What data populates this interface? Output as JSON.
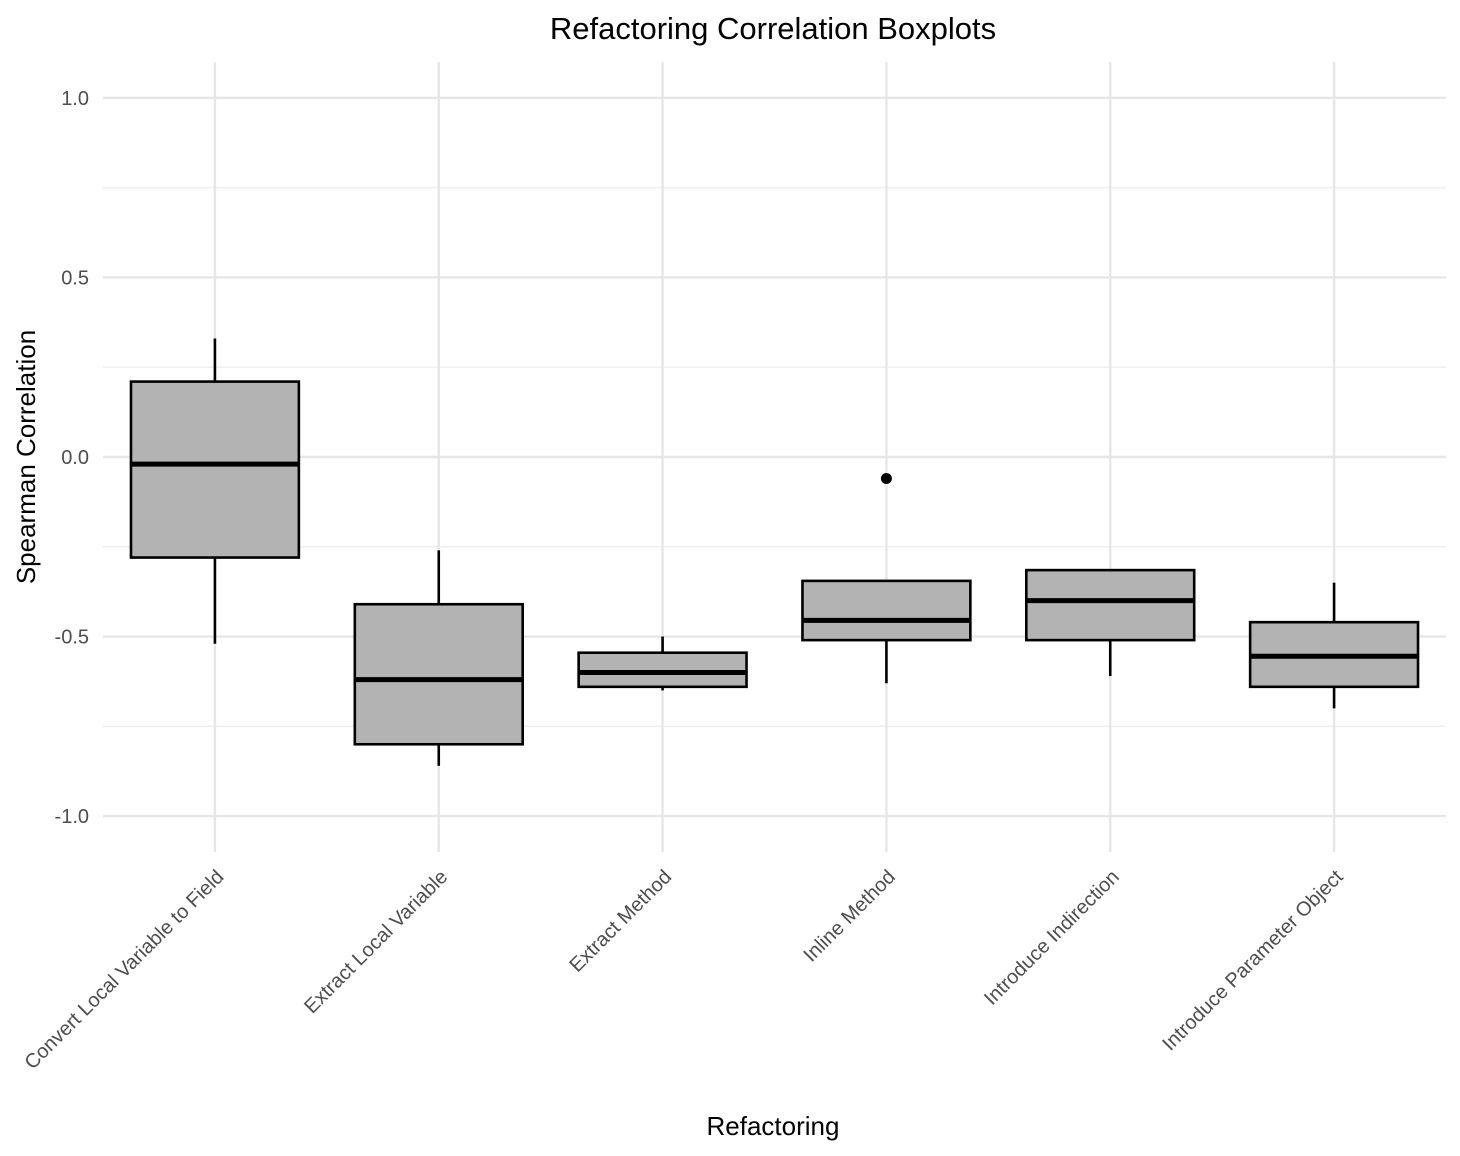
{
  "chart_data": {
    "type": "boxplot",
    "title": "Refactoring Correlation Boxplots",
    "xlabel": "Refactoring",
    "ylabel": "Spearman Correlation",
    "ylim": [
      -1.1,
      1.1
    ],
    "yticks": [
      -1.0,
      -0.5,
      0.0,
      0.5,
      1.0
    ],
    "ytick_labels": [
      "-1.0",
      "-0.5",
      "0.0",
      "0.5",
      "1.0"
    ],
    "y_minor_ticks": [
      -0.75,
      -0.25,
      0.25,
      0.75
    ],
    "grid": true,
    "box_color": "#b3b3b3",
    "categories": [
      "Convert Local Variable to Field",
      "Extract Local Variable",
      "Extract Method",
      "Inline Method",
      "Introduce Indirection",
      "Introduce Parameter Object"
    ],
    "boxes": [
      {
        "whisker_low": -0.52,
        "q1": -0.28,
        "median": -0.02,
        "q3": 0.21,
        "whisker_high": 0.33,
        "outliers": []
      },
      {
        "whisker_low": -0.86,
        "q1": -0.8,
        "median": -0.62,
        "q3": -0.41,
        "whisker_high": -0.26,
        "outliers": []
      },
      {
        "whisker_low": -0.65,
        "q1": -0.64,
        "median": -0.6,
        "q3": -0.545,
        "whisker_high": -0.5,
        "outliers": []
      },
      {
        "whisker_low": -0.63,
        "q1": -0.51,
        "median": -0.455,
        "q3": -0.345,
        "whisker_high": -0.345,
        "outliers": [
          -0.06
        ]
      },
      {
        "whisker_low": -0.61,
        "q1": -0.51,
        "median": -0.4,
        "q3": -0.315,
        "whisker_high": -0.315,
        "outliers": []
      },
      {
        "whisker_low": -0.7,
        "q1": -0.64,
        "median": -0.555,
        "q3": -0.46,
        "whisker_high": -0.35,
        "outliers": []
      }
    ]
  }
}
